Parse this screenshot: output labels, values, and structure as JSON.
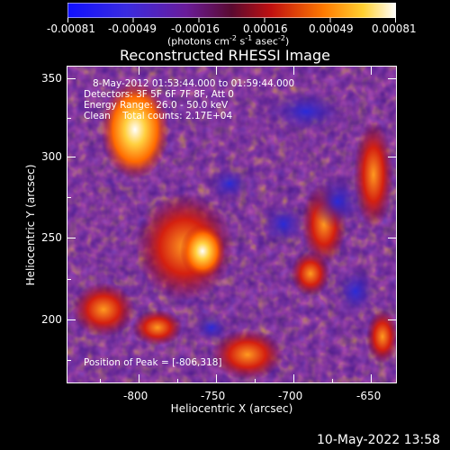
{
  "colorbar": {
    "ticks": [
      "-0.00081",
      "-0.00049",
      "-0.00016",
      "0.00016",
      "0.00049",
      "0.00081"
    ],
    "units_prefix": "(photons cm",
    "units_exp1": "-2",
    "units_mid": " s",
    "units_exp2": "-1",
    "units_mid2": " asec",
    "units_exp3": "-2",
    "units_suffix": ")"
  },
  "plot": {
    "title": "Reconstructed RHESSI Image",
    "xlabel": "Heliocentric X (arcsec)",
    "ylabel": "Heliocentric Y (arcsec)",
    "xticks": [
      "-800",
      "-750",
      "-700",
      "-650"
    ],
    "yticks": [
      "350",
      "300",
      "250",
      "200"
    ]
  },
  "annotations": {
    "time_range": "8-May-2012 01:53:44.000 to 01:59:44.000",
    "detectors": "Detectors: 3F 5F 6F 7F 8F, Att 0",
    "energy": "Energy Range: 26.0 - 50.0 keV",
    "clean": "Clean    Total counts: 2.17E+04",
    "peak": "Position of Peak = [-806,318]"
  },
  "footer": {
    "timestamp": "10-May-2022 13:58"
  },
  "colors": {
    "background": "#000000",
    "text": "#ffffff",
    "map_base": "#4b1a8c"
  }
}
